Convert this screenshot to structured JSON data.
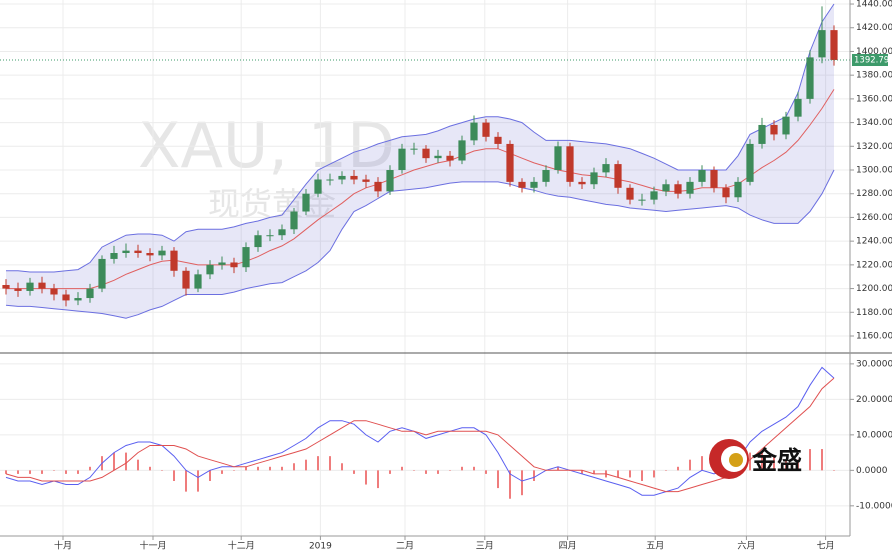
{
  "chart_data": [
    {
      "type": "candlestick",
      "watermark": "XAU, 1D",
      "watermark_sub": "现货黄金",
      "xlim": [
        0,
        70
      ],
      "xticks": [
        {
          "value": 5.25,
          "label": "十月"
        },
        {
          "value": 12.75,
          "label": "十一月"
        },
        {
          "value": 20.1,
          "label": "十二月"
        },
        {
          "value": 26.7,
          "label": "2019"
        },
        {
          "value": 33.75,
          "label": "二月"
        },
        {
          "value": 40.4,
          "label": "三月"
        },
        {
          "value": 47.3,
          "label": "四月"
        },
        {
          "value": 54.6,
          "label": "五月"
        },
        {
          "value": 62.2,
          "label": "六月"
        },
        {
          "value": 68.8,
          "label": "七月"
        }
      ],
      "ylim": [
        1146.5,
        1443.4
      ],
      "yticks": [
        {
          "value": 1160,
          "label": "1160.00"
        },
        {
          "value": 1180,
          "label": "1180.00"
        },
        {
          "value": 1200,
          "label": "1200.00"
        },
        {
          "value": 1220,
          "label": "1220.00"
        },
        {
          "value": 1240,
          "label": "1240.00"
        },
        {
          "value": 1260,
          "label": "1260.00"
        },
        {
          "value": 1280,
          "label": "1280.00"
        },
        {
          "value": 1300,
          "label": "1300.00"
        },
        {
          "value": 1320,
          "label": "1320.00"
        },
        {
          "value": 1340,
          "label": "1340.00"
        },
        {
          "value": 1360,
          "label": "1360.00"
        },
        {
          "value": 1380,
          "label": "1380.00"
        },
        {
          "value": 1400,
          "label": "1400.00"
        },
        {
          "value": 1420,
          "label": "1420.00"
        },
        {
          "value": 1440,
          "label": "1440.00"
        }
      ],
      "grid": true,
      "up_color": "#3d8b5a",
      "down_color": "#c0392b",
      "last_color": "#3d9a6a",
      "open": [
        1203,
        1200,
        1198,
        1205,
        1200,
        1195,
        1190,
        1192,
        1200,
        1225,
        1230,
        1232,
        1230,
        1228,
        1232,
        1215,
        1200,
        1212,
        1220,
        1222,
        1218,
        1235,
        1245,
        1245,
        1250,
        1265,
        1280,
        1292,
        1292,
        1295,
        1292,
        1290,
        1282,
        1300,
        1318,
        1318,
        1310,
        1312,
        1308,
        1325,
        1340,
        1328,
        1322,
        1290,
        1285,
        1290,
        1300,
        1320,
        1290,
        1288,
        1298,
        1305,
        1285,
        1275,
        1275,
        1282,
        1288,
        1280,
        1290,
        1300,
        1285,
        1277,
        1290,
        1322,
        1338,
        1330,
        1345,
        1360,
        1395,
        1418
      ],
      "high": [
        1208,
        1205,
        1209,
        1210,
        1204,
        1199,
        1197,
        1204,
        1228,
        1236,
        1238,
        1237,
        1234,
        1236,
        1235,
        1218,
        1216,
        1224,
        1227,
        1226,
        1239,
        1249,
        1250,
        1254,
        1268,
        1284,
        1297,
        1297,
        1299,
        1300,
        1296,
        1294,
        1304,
        1322,
        1323,
        1321,
        1317,
        1316,
        1329,
        1346,
        1343,
        1332,
        1325,
        1293,
        1294,
        1304,
        1324,
        1323,
        1294,
        1302,
        1310,
        1308,
        1288,
        1280,
        1286,
        1292,
        1291,
        1294,
        1304,
        1303,
        1288,
        1294,
        1326,
        1344,
        1342,
        1349,
        1366,
        1401,
        1438,
        1422
      ],
      "low": [
        1195,
        1193,
        1194,
        1196,
        1190,
        1185,
        1186,
        1188,
        1197,
        1221,
        1226,
        1226,
        1223,
        1224,
        1210,
        1194,
        1197,
        1208,
        1216,
        1213,
        1214,
        1231,
        1240,
        1241,
        1246,
        1262,
        1277,
        1287,
        1288,
        1288,
        1285,
        1277,
        1279,
        1297,
        1313,
        1306,
        1306,
        1303,
        1305,
        1321,
        1324,
        1318,
        1286,
        1281,
        1281,
        1286,
        1297,
        1286,
        1284,
        1284,
        1294,
        1280,
        1271,
        1270,
        1271,
        1278,
        1276,
        1276,
        1286,
        1281,
        1272,
        1273,
        1287,
        1318,
        1325,
        1326,
        1341,
        1356,
        1390,
        1388
      ],
      "close": [
        1200,
        1198,
        1205,
        1200,
        1195,
        1190,
        1192,
        1200,
        1225,
        1230,
        1232,
        1230,
        1228,
        1232,
        1215,
        1200,
        1212,
        1220,
        1222,
        1218,
        1235,
        1245,
        1245,
        1250,
        1265,
        1280,
        1292,
        1292,
        1295,
        1292,
        1290,
        1282,
        1300,
        1318,
        1318,
        1310,
        1312,
        1308,
        1325,
        1340,
        1328,
        1322,
        1290,
        1285,
        1290,
        1300,
        1320,
        1290,
        1288,
        1298,
        1305,
        1285,
        1275,
        1275,
        1282,
        1288,
        1280,
        1290,
        1300,
        1285,
        1277,
        1290,
        1322,
        1338,
        1330,
        1345,
        1360,
        1395,
        1418,
        1392.79
      ],
      "band_fill": "rgba(120,120,210,0.18)",
      "series": [
        {
          "color": "#6b6fe0",
          "values": [
            1215,
            1215,
            1214,
            1214,
            1214,
            1215,
            1216,
            1222,
            1235,
            1240,
            1245,
            1246,
            1246,
            1245,
            1240,
            1248,
            1250,
            1250,
            1250,
            1252,
            1255,
            1257,
            1260,
            1262,
            1275,
            1288,
            1300,
            1305,
            1310,
            1315,
            1318,
            1322,
            1325,
            1328,
            1329,
            1330,
            1333,
            1337,
            1340,
            1343,
            1345,
            1345,
            1343,
            1340,
            1332,
            1325,
            1325,
            1325,
            1324,
            1323,
            1322,
            1320,
            1318,
            1314,
            1310,
            1305,
            1300,
            1300,
            1300,
            1300,
            1300,
            1312,
            1330,
            1335,
            1340,
            1345,
            1365,
            1400,
            1425,
            1440
          ]
        },
        {
          "color": "#e06060",
          "values": [
            1200,
            1200,
            1200,
            1200,
            1200,
            1200,
            1200,
            1200,
            1203,
            1207,
            1212,
            1216,
            1220,
            1223,
            1224,
            1222,
            1220,
            1220,
            1220,
            1220,
            1223,
            1227,
            1232,
            1236,
            1242,
            1250,
            1258,
            1265,
            1272,
            1280,
            1285,
            1288,
            1292,
            1296,
            1300,
            1303,
            1306,
            1308,
            1312,
            1316,
            1318,
            1318,
            1314,
            1310,
            1306,
            1303,
            1300,
            1298,
            1296,
            1295,
            1294,
            1292,
            1290,
            1287,
            1284,
            1282,
            1282,
            1283,
            1285,
            1285,
            1285,
            1288,
            1295,
            1302,
            1308,
            1315,
            1325,
            1338,
            1352,
            1368
          ]
        },
        {
          "color": "#6b6fe0",
          "values": [
            1186,
            1185,
            1185,
            1184,
            1183,
            1182,
            1181,
            1180,
            1179,
            1177,
            1175,
            1178,
            1182,
            1185,
            1190,
            1195,
            1195,
            1195,
            1195,
            1197,
            1200,
            1202,
            1204,
            1205,
            1210,
            1215,
            1222,
            1232,
            1250,
            1265,
            1270,
            1276,
            1282,
            1283,
            1284,
            1285,
            1287,
            1289,
            1290,
            1290,
            1290,
            1290,
            1288,
            1285,
            1283,
            1280,
            1278,
            1277,
            1275,
            1273,
            1271,
            1270,
            1268,
            1267,
            1266,
            1265,
            1266,
            1267,
            1268,
            1269,
            1270,
            1268,
            1262,
            1258,
            1255,
            1255,
            1255,
            1265,
            1280,
            1300
          ]
        }
      ]
    },
    {
      "type": "macd",
      "xlim": [
        0,
        70
      ],
      "ylim": [
        -18.5,
        32.5
      ],
      "yticks": [
        {
          "value": 30,
          "label": "30.0000"
        },
        {
          "value": 20,
          "label": "20.0000"
        },
        {
          "value": 10,
          "label": "10.0000"
        },
        {
          "value": 0,
          "label": "0.0000"
        },
        {
          "value": -10,
          "label": "-10.0000"
        }
      ],
      "series": [
        {
          "color": "#5a5ff0",
          "values": [
            -2,
            -3,
            -3,
            -4,
            -3,
            -4,
            -4,
            -2,
            2,
            5,
            7,
            8,
            8,
            7,
            4,
            0,
            -2,
            0,
            1,
            1,
            2,
            3,
            4,
            5,
            7,
            9,
            12,
            14,
            14,
            13,
            10,
            8,
            11,
            12,
            11,
            9,
            10,
            11,
            12,
            12,
            10,
            5,
            -1,
            -3,
            -2,
            0,
            1,
            0,
            -1,
            -2,
            -3,
            -4,
            -5,
            -7,
            -7,
            -6,
            -5,
            -2,
            0,
            -1,
            0,
            3,
            8,
            11,
            13,
            15,
            18,
            24,
            29,
            26
          ]
        },
        {
          "color": "#e05050",
          "values": [
            -1,
            -2,
            -2,
            -3,
            -3,
            -3,
            -3,
            -3,
            -2,
            0,
            2,
            5,
            7,
            7,
            7,
            6,
            4,
            3,
            2,
            1,
            1,
            2,
            3,
            4,
            5,
            6,
            8,
            10,
            12,
            14,
            14,
            13,
            12,
            11,
            11,
            10,
            11,
            11,
            11,
            11,
            11,
            10,
            7,
            4,
            1,
            0,
            0,
            0,
            0,
            -1,
            -1,
            -2,
            -3,
            -4,
            -5,
            -6,
            -6,
            -5,
            -4,
            -3,
            -2,
            0,
            3,
            6,
            9,
            12,
            15,
            18,
            23,
            26
          ]
        }
      ],
      "histogram": {
        "color": "#ef7c7c",
        "values": [
          -1,
          -1,
          -1,
          -1,
          0,
          -1,
          -1,
          1,
          4,
          5,
          5,
          3,
          1,
          0,
          -3,
          -6,
          -6,
          -3,
          -1,
          0,
          1,
          1,
          1,
          1,
          2,
          3,
          4,
          4,
          2,
          -1,
          -4,
          -5,
          -1,
          1,
          0,
          -1,
          -1,
          0,
          1,
          1,
          -1,
          -5,
          -8,
          -7,
          -3,
          0,
          1,
          0,
          -1,
          -1,
          -2,
          -2,
          -2,
          -3,
          -2,
          0,
          1,
          3,
          4,
          2,
          2,
          3,
          5,
          5,
          4,
          3,
          3,
          6,
          6,
          0
        ]
      },
      "logo": "金盛"
    }
  ]
}
